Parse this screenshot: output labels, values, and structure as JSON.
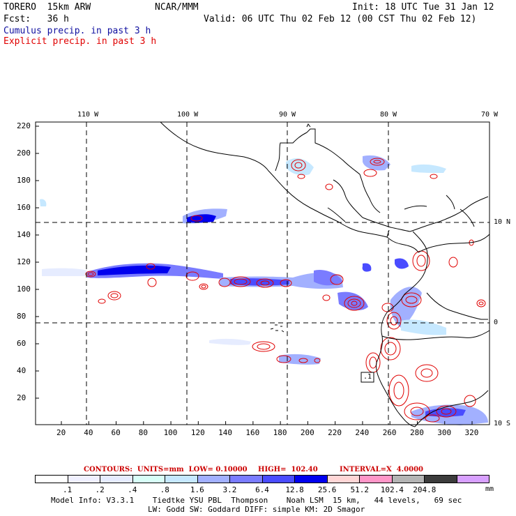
{
  "header": {
    "model": "TORERO  15km ARW",
    "org": "NCAR/MMM",
    "init": "Init: 18 UTC Tue 31 Jan 12",
    "fcst": "Fcst:   36 h",
    "valid": "Valid: 06 UTC Thu 02 Feb 12 (00 CST Thu 02 Feb 12)",
    "line_cumulus": "Cumulus precip. in past 3 h",
    "line_explicit": "Explicit precip. in past 3 h"
  },
  "map": {
    "lon_labels": [
      "110 W",
      "100 W",
      "90 W",
      "80 W",
      "70 W"
    ],
    "lat_labels": [
      "10 N",
      "0",
      "10 S"
    ],
    "y_ticks": [
      "220",
      "200",
      "180",
      "160",
      "140",
      "120",
      "100",
      "80",
      "60",
      "40",
      "20"
    ],
    "x_ticks": [
      "20",
      "40",
      "60",
      "80",
      "100",
      "120",
      "140",
      "160",
      "180",
      "200",
      "220",
      "240",
      "260",
      "280",
      "300",
      "320"
    ],
    "box_label": ".1",
    "colors": {
      "coast": "#000000",
      "grid": "#000000",
      "explicit_contour": "#e00000",
      "cumulus_fill": "#0000ee"
    }
  },
  "contours": {
    "units": "CONTOURS:  UNITS=mm  LOW= 0.10000",
    "high": "HIGH=  102.40",
    "interval": "INTERVAL=X  4.0000"
  },
  "legend": {
    "colors": [
      "#ffffff",
      "#f0f0ff",
      "#e6ecff",
      "#d8fff8",
      "#c6e8ff",
      "#a2b0ff",
      "#7a7cff",
      "#4a4cff",
      "#0000ee",
      "#ffd6d6",
      "#ff96c8",
      "#b4b4b4",
      "#3c3c3c",
      "#d8a0ff"
    ],
    "labels": [
      ".1",
      ".2",
      ".4",
      ".8",
      "1.6",
      "3.2",
      "6.4",
      "12.8",
      "25.6",
      "51.2",
      "102.4",
      "204.8"
    ],
    "unit": "mm"
  },
  "footer": {
    "line1": "Model Info: V3.3.1    Tiedtke YSU PBL  Thompson    Noah LSM  15 km,   44 levels,   69 sec",
    "line2": "LW: Godd SW: Goddard DIFF: simple KM: 2D Smagor"
  }
}
